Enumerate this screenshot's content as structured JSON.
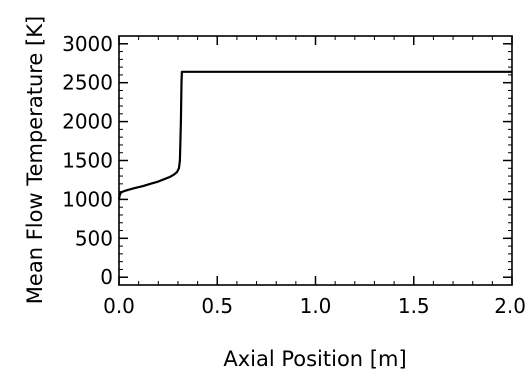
{
  "chart_data": {
    "type": "line",
    "title": "",
    "xlabel": "Axial Position [m]",
    "ylabel": "Mean Flow Temperature [K]",
    "xlim": [
      0.0,
      2.0
    ],
    "ylim": [
      -100,
      3100
    ],
    "xticks": [
      0.0,
      0.5,
      1.0,
      1.5,
      2.0
    ],
    "xtick_labels": [
      "0.0",
      "0.5",
      "1.0",
      "1.5",
      "2.0"
    ],
    "yticks": [
      0,
      500,
      1000,
      1500,
      2000,
      2500,
      3000
    ],
    "ytick_labels": [
      "0",
      "500",
      "1000",
      "1500",
      "2000",
      "2500",
      "3000"
    ],
    "grid": false,
    "series": [
      {
        "x": [
          0.0,
          0.003,
          0.01,
          0.03,
          0.05,
          0.08,
          0.12,
          0.16,
          0.2,
          0.23,
          0.26,
          0.28,
          0.295,
          0.305,
          0.31,
          0.315,
          0.318,
          0.32,
          0.5,
          1.0,
          1.5,
          2.0
        ],
        "y": [
          1000,
          1050,
          1090,
          1110,
          1125,
          1145,
          1170,
          1200,
          1230,
          1260,
          1290,
          1320,
          1350,
          1400,
          1500,
          2000,
          2500,
          2640,
          2640,
          2640,
          2640,
          2640
        ]
      }
    ]
  }
}
